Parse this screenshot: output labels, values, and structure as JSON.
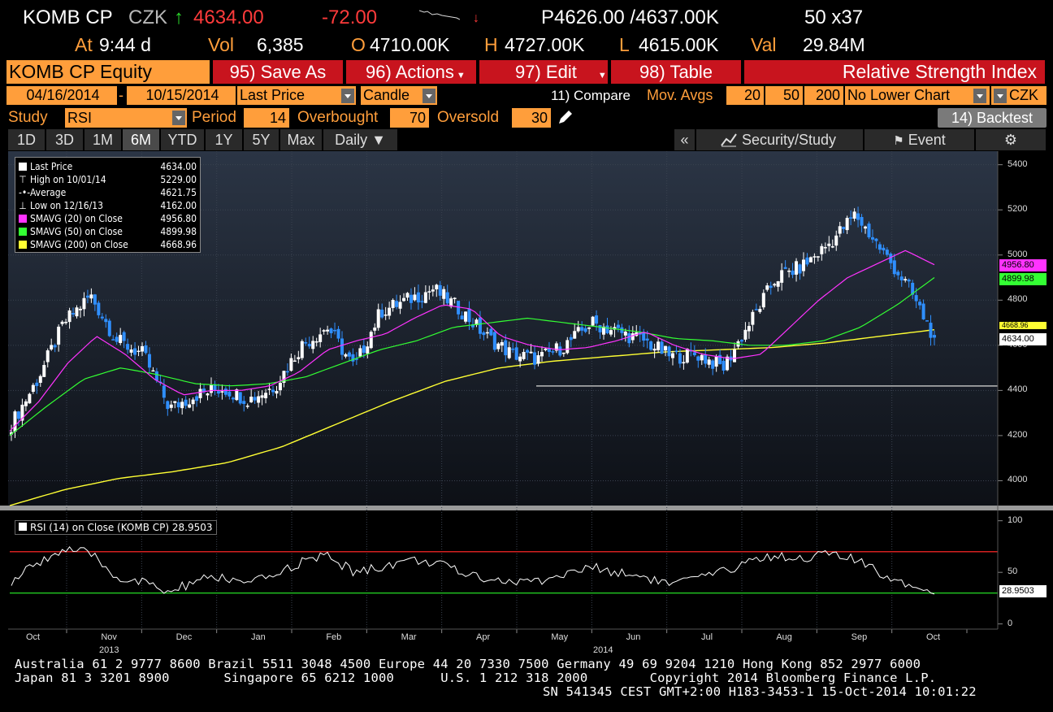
{
  "header": {
    "ticker": "KOMB CP",
    "currency": "CZK",
    "arrow": "↑",
    "last": "4634.00",
    "change": "-72.00",
    "bidask": "P4626.00 /4637.00K",
    "size": "50 x37",
    "at_label": "At",
    "time": "9:44 d",
    "vol_label": "Vol",
    "vol": "6,385",
    "open_label": "O",
    "open": "4710.00K",
    "high_label": "H",
    "high": "4727.00K",
    "low_label": "L",
    "low": "4615.00K",
    "val_label": "Val",
    "val": "29.84M"
  },
  "toolbar": {
    "security": "KOMB CP Equity",
    "save_as": "95) Save As",
    "actions": "96) Actions",
    "edit": "97) Edit",
    "table": "98) Table",
    "title": "Relative Strength Index"
  },
  "params": {
    "start_date": "04/16/2014",
    "dash": "-",
    "end_date": "10/15/2014",
    "field": "Last Price",
    "style": "Candle",
    "compare": "11) Compare",
    "mov_avgs_label": "Mov. Avgs",
    "ma1": "20",
    "ma2": "50",
    "ma3": "200",
    "lower_chart": "No Lower Chart",
    "ccy": "CZK"
  },
  "study": {
    "label": "Study",
    "value": "RSI",
    "period_label": "Period",
    "period": "14",
    "overbought_label": "Overbought",
    "overbought": "70",
    "oversold_label": "Oversold",
    "oversold": "30",
    "backtest": "14) Backtest"
  },
  "tabs": [
    {
      "label": "1D"
    },
    {
      "label": "3D"
    },
    {
      "label": "1M"
    },
    {
      "label": "6M"
    },
    {
      "label": "YTD"
    },
    {
      "label": "1Y"
    },
    {
      "label": "5Y"
    },
    {
      "label": "Max"
    },
    {
      "label": "Daily ▼"
    }
  ],
  "right_tabs": {
    "collapse": "«",
    "security_study": "Security/Study",
    "event": "Event",
    "gear": "⚙"
  },
  "legend": [
    {
      "name": "Last Price",
      "value": "4634.00",
      "color": "#ffffff"
    },
    {
      "name": "High on 10/01/14",
      "value": "5229.00",
      "color": "#ffffff"
    },
    {
      "name": "Average",
      "value": "4621.75",
      "color": "#ffffff"
    },
    {
      "name": "Low on 12/16/13",
      "value": "4162.00",
      "color": "#ffffff"
    },
    {
      "name": "SMAVG (20) on Close",
      "value": "4956.80",
      "color": "#ff33ff"
    },
    {
      "name": "SMAVG (50) on Close",
      "value": "4899.98",
      "color": "#33ff33"
    },
    {
      "name": "SMAVG (200) on Close",
      "value": "4668.96",
      "color": "#ffff33"
    }
  ],
  "rsi_legend": "RSI (14) on Close (KOMB CP) 28.9503",
  "price_tags": [
    {
      "value": "4956.80",
      "color": "#ff33ff"
    },
    {
      "value": "4899.98",
      "color": "#33ff33"
    },
    {
      "value": "4668.96",
      "color": "#ffff33"
    },
    {
      "value": "4634.00",
      "color": "#ffffff"
    }
  ],
  "rsi_tag": "28.9503",
  "chart_data": {
    "type": "candlestick",
    "price_axis": {
      "ticks": [
        4000,
        4200,
        4400,
        4600,
        4800,
        5000,
        5200,
        5400
      ],
      "ylim": [
        3890,
        5460
      ]
    },
    "rsi_axis": {
      "ticks": [
        0,
        50,
        100
      ],
      "ylim": [
        -5,
        110
      ],
      "overbought": 70,
      "oversold": 30
    },
    "x_months": [
      "Oct",
      "Nov",
      "Dec",
      "Jan",
      "Feb",
      "Mar",
      "Apr",
      "May",
      "Jun",
      "Jul",
      "Aug",
      "Sep",
      "Oct"
    ],
    "x_years": [
      "2013",
      "2014"
    ],
    "close_weekly": [
      4250,
      4450,
      4700,
      4820,
      4620,
      4560,
      4320,
      4380,
      4410,
      4360,
      4420,
      4600,
      4680,
      4500,
      4750,
      4800,
      4850,
      4760,
      4640,
      4560,
      4540,
      4600,
      4700,
      4660,
      4620,
      4550,
      4560,
      4500,
      4700,
      4900,
      4950,
      5050,
      5180,
      5020,
      4860,
      4634
    ],
    "sma20_weekly": [
      4220,
      4350,
      4520,
      4640,
      4560,
      4450,
      4380,
      4400,
      4400,
      4420,
      4480,
      4580,
      4620,
      4650,
      4720,
      4780,
      4760,
      4640,
      4600,
      4580,
      4590,
      4620,
      4660,
      4600,
      4560,
      4540,
      4560,
      4680,
      4800,
      4900,
      4960,
      5020,
      4956.8
    ],
    "sma50_weekly": [
      4200,
      4330,
      4450,
      4500,
      4470,
      4430,
      4420,
      4430,
      4460,
      4520,
      4580,
      4620,
      4680,
      4700,
      4720,
      4700,
      4680,
      4660,
      4630,
      4620,
      4600,
      4600,
      4620,
      4680,
      4780,
      4899.98
    ],
    "sma200_weekly": [
      3890,
      3960,
      4010,
      4040,
      4080,
      4150,
      4250,
      4350,
      4440,
      4500,
      4530,
      4550,
      4570,
      4580,
      4590,
      4610,
      4640,
      4668.96
    ],
    "support_level": 4420,
    "rsi_weekly": [
      40,
      60,
      72,
      68,
      45,
      40,
      30,
      42,
      45,
      38,
      48,
      60,
      66,
      50,
      55,
      62,
      60,
      50,
      45,
      40,
      42,
      48,
      55,
      50,
      46,
      38,
      44,
      50,
      62,
      66,
      64,
      68,
      62,
      48,
      40,
      28.95
    ]
  },
  "footer": {
    "line1": "Australia 61 2 9777 8600 Brazil 5511 3048 4500 Europe 44 20 7330 7500 Germany 49 69 9204 1210 Hong Kong 852 2977 6000",
    "line2": "Japan 81 3 3201 8900       Singapore 65 6212 1000      U.S. 1 212 318 2000        Copyright 2014 Bloomberg Finance L.P.",
    "line3": "SN 541345 CEST GMT+2:00 H183-3453-1 15-Oct-2014 10:01:22"
  }
}
